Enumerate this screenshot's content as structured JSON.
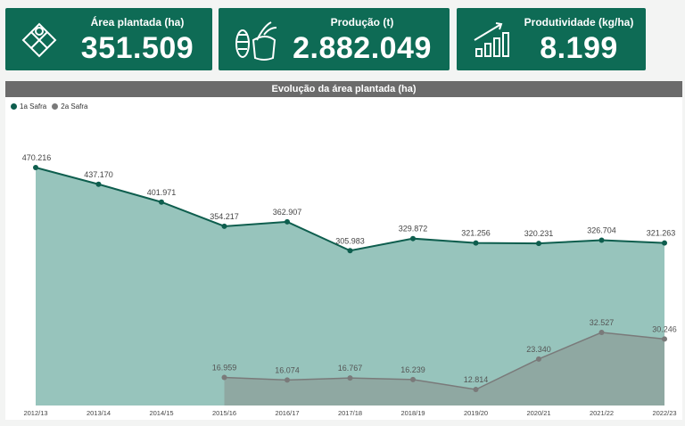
{
  "kpis": [
    {
      "title": "Área plantada (ha)",
      "value": "351.509",
      "icon": "field-map-icon"
    },
    {
      "title": "Produção (t)",
      "value": "2.882.049",
      "icon": "harvest-sack-icon"
    },
    {
      "title": "Produtividade (kg/ha)",
      "value": "8.199",
      "icon": "growth-chart-icon"
    }
  ],
  "chart_title": "Evolução da área plantada (ha)",
  "legend": [
    "1a Safra",
    "2a Safra"
  ],
  "colors": {
    "safra1_line": "#0e5e4e",
    "safra1_fill": "#97c4bc",
    "safra2_line": "#7a7a7a",
    "safra2_fill": "#8fa8a2",
    "kpi_bg": "#0e6b55"
  },
  "chart_data": {
    "type": "area",
    "title": "Evolução da área plantada (ha)",
    "categories": [
      "2012/13",
      "2013/14",
      "2014/15",
      "2015/16",
      "2016/17",
      "2017/18",
      "2018/19",
      "2019/20",
      "2020/21",
      "2021/22",
      "2022/23"
    ],
    "series": [
      {
        "name": "1a Safra",
        "values": [
          470216,
          437170,
          401971,
          354217,
          362907,
          305983,
          329872,
          321256,
          320231,
          326704,
          321263
        ],
        "labels": [
          "470.216",
          "437.170",
          "401.971",
          "354.217",
          "362.907",
          "305.983",
          "329.872",
          "321.256",
          "320.231",
          "326.704",
          "321.263"
        ]
      },
      {
        "name": "2a Safra",
        "values": [
          null,
          null,
          null,
          16959,
          16074,
          16767,
          16239,
          12814,
          23340,
          32527,
          30246
        ],
        "labels": [
          null,
          null,
          null,
          "16.959",
          "16.074",
          "16.767",
          "16.239",
          "12.814",
          "23.340",
          "32.527",
          "30.246"
        ]
      }
    ],
    "legend_position": "top-left",
    "grid": false
  }
}
